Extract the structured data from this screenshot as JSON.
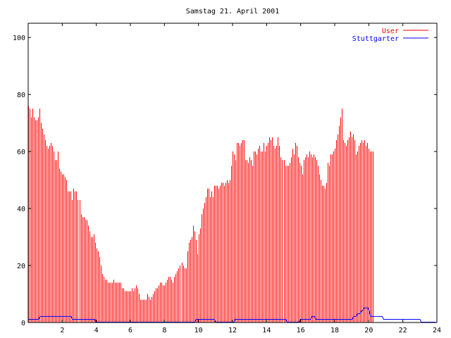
{
  "chart_data": {
    "type": "bar",
    "title": "Samstag 21. April 2001",
    "xlabel": "",
    "ylabel": "",
    "xlim": [
      0,
      24
    ],
    "ylim": [
      0,
      105
    ],
    "xticks": [
      2,
      4,
      6,
      8,
      10,
      12,
      14,
      16,
      18,
      20,
      22,
      24
    ],
    "yticks": [
      0,
      20,
      40,
      60,
      80,
      100
    ],
    "legend_position": "top-right",
    "step_minutes": 5,
    "series": [
      {
        "name": "User",
        "color": "#ff0000",
        "style": "impulses",
        "values": [
          76,
          75,
          72,
          75,
          72,
          71,
          71,
          72,
          75,
          70,
          68,
          66,
          64,
          62,
          61,
          62,
          63,
          62,
          60,
          57,
          57,
          60,
          54,
          53,
          52,
          52,
          51,
          50,
          46,
          46,
          46,
          43,
          47,
          46,
          46,
          43,
          43,
          38,
          37,
          37,
          36,
          36,
          34,
          32,
          30,
          30,
          31,
          28,
          26,
          25,
          23,
          20,
          17,
          16,
          15,
          15,
          14,
          14,
          14,
          14,
          15,
          14,
          14,
          14,
          14,
          14,
          12,
          12,
          11,
          11,
          11,
          11,
          11,
          12,
          11,
          12,
          13,
          12,
          10,
          8,
          8,
          8,
          8,
          8,
          10,
          9,
          8,
          9,
          10,
          11,
          12,
          12,
          13,
          14,
          14,
          13,
          13,
          14,
          15,
          16,
          16,
          15,
          14,
          16,
          17,
          18,
          19,
          20,
          21,
          20,
          19,
          19,
          25,
          28,
          29,
          30,
          34,
          32,
          29,
          24,
          31,
          33,
          38,
          40,
          42,
          44,
          47,
          47,
          44,
          46,
          44,
          48,
          48,
          48,
          47,
          48,
          49,
          49,
          48,
          49,
          50,
          49,
          50,
          55,
          60,
          59,
          57,
          63,
          63,
          62,
          63,
          64,
          64,
          57,
          57,
          56,
          58,
          57,
          55,
          60,
          60,
          59,
          61,
          62,
          60,
          60,
          63,
          60,
          62,
          63,
          65,
          64,
          65,
          62,
          61,
          62,
          65,
          62,
          58,
          57,
          57,
          55,
          55,
          55,
          56,
          58,
          61,
          59,
          63,
          62,
          58,
          56,
          55,
          52,
          57,
          58,
          59,
          58,
          60,
          59,
          58,
          59,
          58,
          57,
          55,
          52,
          50,
          48,
          48,
          47,
          49,
          56,
          55,
          59,
          59,
          60,
          61,
          64,
          66,
          69,
          72,
          75,
          64,
          63,
          62,
          64,
          65,
          67,
          65,
          66,
          64,
          59,
          60,
          62,
          63,
          64,
          63,
          64,
          62,
          63,
          61,
          60,
          60,
          60
        ]
      },
      {
        "name": "Stuttgarter",
        "color": "#0000ff",
        "style": "lines",
        "values": [
          1,
          1,
          1,
          1,
          1,
          1,
          1,
          1,
          1,
          2,
          2,
          2,
          2,
          2,
          2,
          2,
          2,
          2,
          2,
          2,
          2,
          2,
          2,
          2,
          2,
          2,
          2,
          2,
          2,
          2,
          2,
          2,
          2,
          2,
          1,
          1,
          1,
          1,
          1,
          1,
          1,
          1,
          1,
          1,
          1,
          1,
          1,
          1,
          1,
          1,
          1,
          1,
          0,
          0,
          0,
          0,
          0,
          0,
          0,
          0,
          0,
          0,
          0,
          0,
          0,
          0,
          0,
          0,
          0,
          0,
          0,
          0,
          0,
          0,
          0,
          0,
          0,
          0,
          0,
          0,
          0,
          0,
          0,
          0,
          0,
          0,
          0,
          0,
          0,
          0,
          0,
          0,
          0,
          0,
          0,
          0,
          0,
          0,
          0,
          0,
          0,
          0,
          0,
          0,
          0,
          0,
          0,
          0,
          0,
          0,
          0,
          0,
          0,
          0,
          0,
          0,
          0,
          0,
          0,
          0,
          0,
          0,
          0,
          0,
          0,
          0,
          0,
          0,
          0,
          1,
          1,
          1,
          1,
          1,
          1,
          1,
          1,
          1,
          1,
          1,
          1,
          1,
          1,
          1,
          0,
          0,
          0,
          0,
          0,
          0,
          0,
          0,
          0,
          0,
          0,
          0,
          0,
          0,
          0,
          1,
          1,
          1,
          1,
          1,
          1,
          1,
          1,
          1,
          1,
          1,
          1,
          1,
          1,
          1,
          1,
          1,
          1,
          1,
          1,
          1,
          1,
          1,
          1,
          1,
          1,
          1,
          1,
          1,
          1,
          1,
          1,
          1,
          1,
          1,
          1,
          1,
          1,
          1,
          1,
          0,
          0,
          0,
          0,
          0,
          0,
          0,
          0,
          0,
          0,
          1,
          1,
          1,
          1,
          1,
          1,
          1,
          1,
          1,
          2,
          2,
          2,
          1,
          1,
          1,
          1,
          1,
          1,
          1,
          1,
          1,
          1,
          1,
          1,
          1,
          1,
          1,
          1,
          1,
          1,
          1,
          1,
          1,
          1,
          1,
          1,
          1,
          1,
          1,
          1,
          1,
          2,
          2,
          2,
          3,
          3,
          3,
          4,
          4,
          5,
          5,
          5,
          5,
          4,
          2,
          2,
          2,
          2,
          2,
          2,
          2,
          2,
          2,
          2,
          1,
          1,
          1,
          1,
          1,
          1,
          1,
          1,
          1,
          1,
          1,
          1,
          1,
          1,
          1,
          1,
          1,
          1,
          1,
          1,
          1,
          1,
          1,
          1,
          1,
          1,
          1,
          1,
          1,
          0,
          0,
          0,
          0,
          0,
          0,
          0,
          0,
          0,
          0,
          0,
          0
        ]
      }
    ]
  }
}
